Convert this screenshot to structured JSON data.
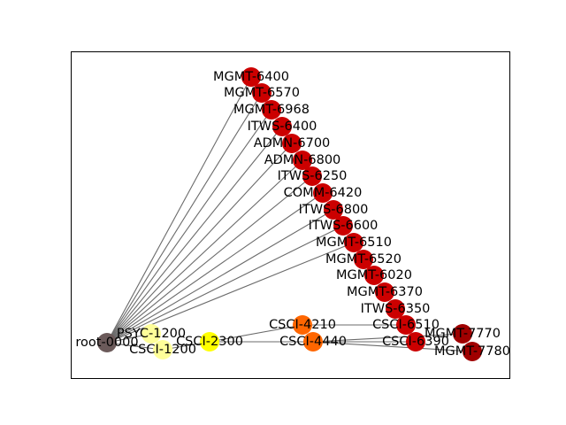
{
  "graph": {
    "nodes": [
      {
        "id": "root-0000",
        "label": "root-0000",
        "color": "#6b5a5a"
      },
      {
        "id": "PSYC-1200",
        "label": "PSYC-1200",
        "color": "#ffff99"
      },
      {
        "id": "CSCI-1200",
        "label": "CSCI-1200",
        "color": "#ffff99"
      },
      {
        "id": "CSCI-2300",
        "label": "CSCI-2300",
        "color": "#ffff00"
      },
      {
        "id": "CSCI-4210",
        "label": "CSCI-4210",
        "color": "#ff6600"
      },
      {
        "id": "CSCI-4440",
        "label": "CSCI-4440",
        "color": "#ff6600"
      },
      {
        "id": "CSCI-6510",
        "label": "CSCI-6510",
        "color": "#cc0000"
      },
      {
        "id": "CSCI-6390",
        "label": "CSCI-6390",
        "color": "#cc0000"
      },
      {
        "id": "MGMT-7770",
        "label": "MGMT-7770",
        "color": "#a00000"
      },
      {
        "id": "MGMT-7780",
        "label": "MGMT-7780",
        "color": "#a00000"
      },
      {
        "id": "MGMT-6400",
        "label": "MGMT-6400",
        "color": "#cc0000"
      },
      {
        "id": "MGMT-6570",
        "label": "MGMT-6570",
        "color": "#cc0000"
      },
      {
        "id": "MGMT-6968",
        "label": "MGMT-6968",
        "color": "#cc0000"
      },
      {
        "id": "ITWS-6400",
        "label": "ITWS-6400",
        "color": "#cc0000"
      },
      {
        "id": "ADMN-6700",
        "label": "ADMN-6700",
        "color": "#cc0000"
      },
      {
        "id": "ADMN-6800",
        "label": "ADMN-6800",
        "color": "#cc0000"
      },
      {
        "id": "ITWS-6250",
        "label": "ITWS-6250",
        "color": "#cc0000"
      },
      {
        "id": "COMM-6420",
        "label": "COMM-6420",
        "color": "#cc0000"
      },
      {
        "id": "ITWS-6800",
        "label": "ITWS-6800",
        "color": "#cc0000"
      },
      {
        "id": "ITWS-6600",
        "label": "ITWS-6600",
        "color": "#cc0000"
      },
      {
        "id": "MGMT-6510",
        "label": "MGMT-6510",
        "color": "#cc0000"
      },
      {
        "id": "MGMT-6520",
        "label": "MGMT-6520",
        "color": "#cc0000"
      },
      {
        "id": "MGMT-6020",
        "label": "MGMT-6020",
        "color": "#cc0000"
      },
      {
        "id": "MGMT-6370",
        "label": "MGMT-6370",
        "color": "#cc0000"
      },
      {
        "id": "ITWS-6350",
        "label": "ITWS-6350",
        "color": "#cc0000"
      }
    ],
    "edges": [
      [
        "root-0000",
        "MGMT-6400"
      ],
      [
        "root-0000",
        "MGMT-6570"
      ],
      [
        "root-0000",
        "MGMT-6968"
      ],
      [
        "root-0000",
        "ITWS-6400"
      ],
      [
        "root-0000",
        "ADMN-6700"
      ],
      [
        "root-0000",
        "ADMN-6800"
      ],
      [
        "root-0000",
        "ITWS-6250"
      ],
      [
        "root-0000",
        "COMM-6420"
      ],
      [
        "root-0000",
        "ITWS-6800"
      ],
      [
        "root-0000",
        "ITWS-6600"
      ],
      [
        "root-0000",
        "MGMT-6510"
      ],
      [
        "root-0000",
        "PSYC-1200"
      ],
      [
        "root-0000",
        "CSCI-1200"
      ],
      [
        "CSCI-1200",
        "CSCI-2300"
      ],
      [
        "CSCI-2300",
        "CSCI-4210"
      ],
      [
        "CSCI-2300",
        "CSCI-4440"
      ],
      [
        "CSCI-2300",
        "CSCI-6390"
      ],
      [
        "CSCI-4210",
        "CSCI-6510"
      ],
      [
        "CSCI-4440",
        "MGMT-7770"
      ],
      [
        "CSCI-4440",
        "MGMT-7780"
      ]
    ]
  }
}
